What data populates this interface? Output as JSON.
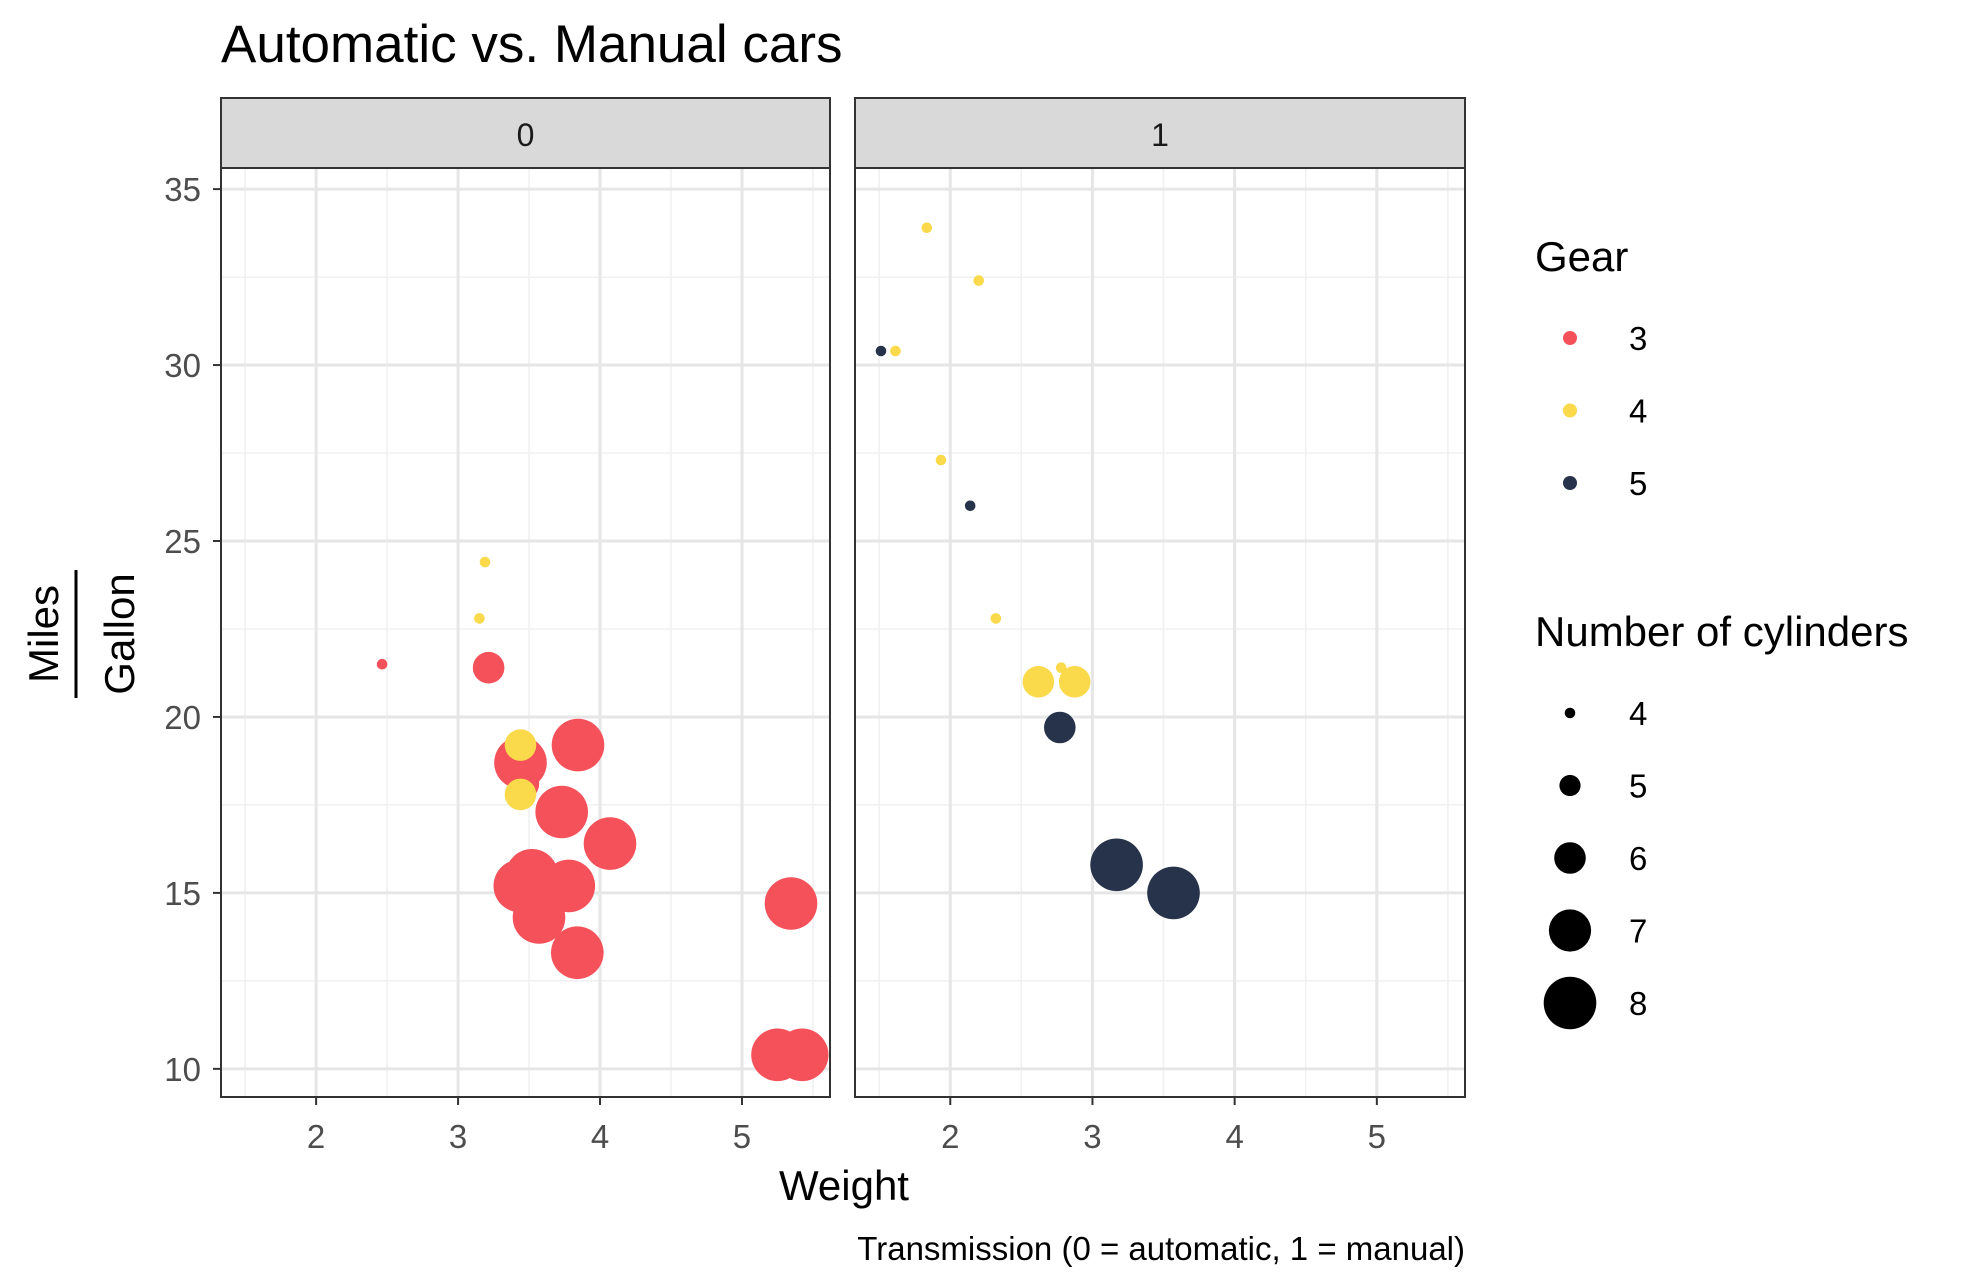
{
  "chart_data": {
    "type": "scatter",
    "title": "Automatic vs. Manual cars",
    "xlabel": "Weight",
    "ylabel_numerator": "Miles",
    "ylabel_denominator": "Gallon",
    "caption": "Transmission (0 = automatic, 1 = manual)",
    "xlim": [
      1.33,
      5.62
    ],
    "ylim": [
      9.2,
      35.6
    ],
    "x_ticks": [
      2,
      3,
      4,
      5
    ],
    "x_tick_labels": [
      "2",
      "3",
      "4",
      "5"
    ],
    "y_ticks": [
      10,
      15,
      20,
      25,
      30,
      35
    ],
    "y_tick_labels": [
      "10",
      "15",
      "20",
      "25",
      "30",
      "35"
    ],
    "colors": {
      "3": "#F5515B",
      "4": "#FAD94A",
      "5": "#26334B"
    },
    "legend_color": {
      "title": "Gear",
      "entries": [
        {
          "label": "3",
          "color": "#F5515B"
        },
        {
          "label": "4",
          "color": "#FAD94A"
        },
        {
          "label": "5",
          "color": "#26334B"
        }
      ]
    },
    "legend_size": {
      "title": "Number of cylinders",
      "entries": [
        {
          "label": "4",
          "value": 4
        },
        {
          "label": "5",
          "value": 5
        },
        {
          "label": "6",
          "value": 6
        },
        {
          "label": "7",
          "value": 7
        },
        {
          "label": "8",
          "value": 8
        }
      ]
    },
    "panels": [
      {
        "label": "0",
        "points": [
          {
            "x": 3.215,
            "y": 21.4,
            "gear": 3,
            "cyl": 6
          },
          {
            "x": 3.44,
            "y": 18.7,
            "gear": 3,
            "cyl": 8
          },
          {
            "x": 3.46,
            "y": 18.1,
            "gear": 3,
            "cyl": 6
          },
          {
            "x": 3.57,
            "y": 14.3,
            "gear": 3,
            "cyl": 8
          },
          {
            "x": 3.19,
            "y": 24.4,
            "gear": 4,
            "cyl": 4
          },
          {
            "x": 3.15,
            "y": 22.8,
            "gear": 4,
            "cyl": 4
          },
          {
            "x": 3.44,
            "y": 19.2,
            "gear": 4,
            "cyl": 6
          },
          {
            "x": 3.44,
            "y": 17.8,
            "gear": 4,
            "cyl": 6
          },
          {
            "x": 4.07,
            "y": 16.4,
            "gear": 3,
            "cyl": 8
          },
          {
            "x": 3.73,
            "y": 17.3,
            "gear": 3,
            "cyl": 8
          },
          {
            "x": 3.78,
            "y": 15.2,
            "gear": 3,
            "cyl": 8
          },
          {
            "x": 5.25,
            "y": 10.4,
            "gear": 3,
            "cyl": 8
          },
          {
            "x": 5.424,
            "y": 10.4,
            "gear": 3,
            "cyl": 8
          },
          {
            "x": 5.345,
            "y": 14.7,
            "gear": 3,
            "cyl": 8
          },
          {
            "x": 2.465,
            "y": 21.5,
            "gear": 3,
            "cyl": 4
          },
          {
            "x": 3.52,
            "y": 15.5,
            "gear": 3,
            "cyl": 8
          },
          {
            "x": 3.435,
            "y": 15.2,
            "gear": 3,
            "cyl": 8
          },
          {
            "x": 3.84,
            "y": 13.3,
            "gear": 3,
            "cyl": 8
          },
          {
            "x": 3.845,
            "y": 19.2,
            "gear": 3,
            "cyl": 8
          }
        ]
      },
      {
        "label": "1",
        "points": [
          {
            "x": 2.62,
            "y": 21.0,
            "gear": 4,
            "cyl": 6
          },
          {
            "x": 2.875,
            "y": 21.0,
            "gear": 4,
            "cyl": 6
          },
          {
            "x": 2.32,
            "y": 22.8,
            "gear": 4,
            "cyl": 4
          },
          {
            "x": 2.2,
            "y": 32.4,
            "gear": 4,
            "cyl": 4
          },
          {
            "x": 1.615,
            "y": 30.4,
            "gear": 4,
            "cyl": 4
          },
          {
            "x": 1.835,
            "y": 33.9,
            "gear": 4,
            "cyl": 4
          },
          {
            "x": 1.935,
            "y": 27.3,
            "gear": 4,
            "cyl": 4
          },
          {
            "x": 2.14,
            "y": 26.0,
            "gear": 5,
            "cyl": 4
          },
          {
            "x": 1.513,
            "y": 30.4,
            "gear": 5,
            "cyl": 4
          },
          {
            "x": 3.17,
            "y": 15.8,
            "gear": 5,
            "cyl": 8
          },
          {
            "x": 2.77,
            "y": 19.7,
            "gear": 5,
            "cyl": 6
          },
          {
            "x": 3.57,
            "y": 15.0,
            "gear": 5,
            "cyl": 8
          },
          {
            "x": 2.78,
            "y": 21.4,
            "gear": 4,
            "cyl": 4
          }
        ]
      }
    ]
  }
}
